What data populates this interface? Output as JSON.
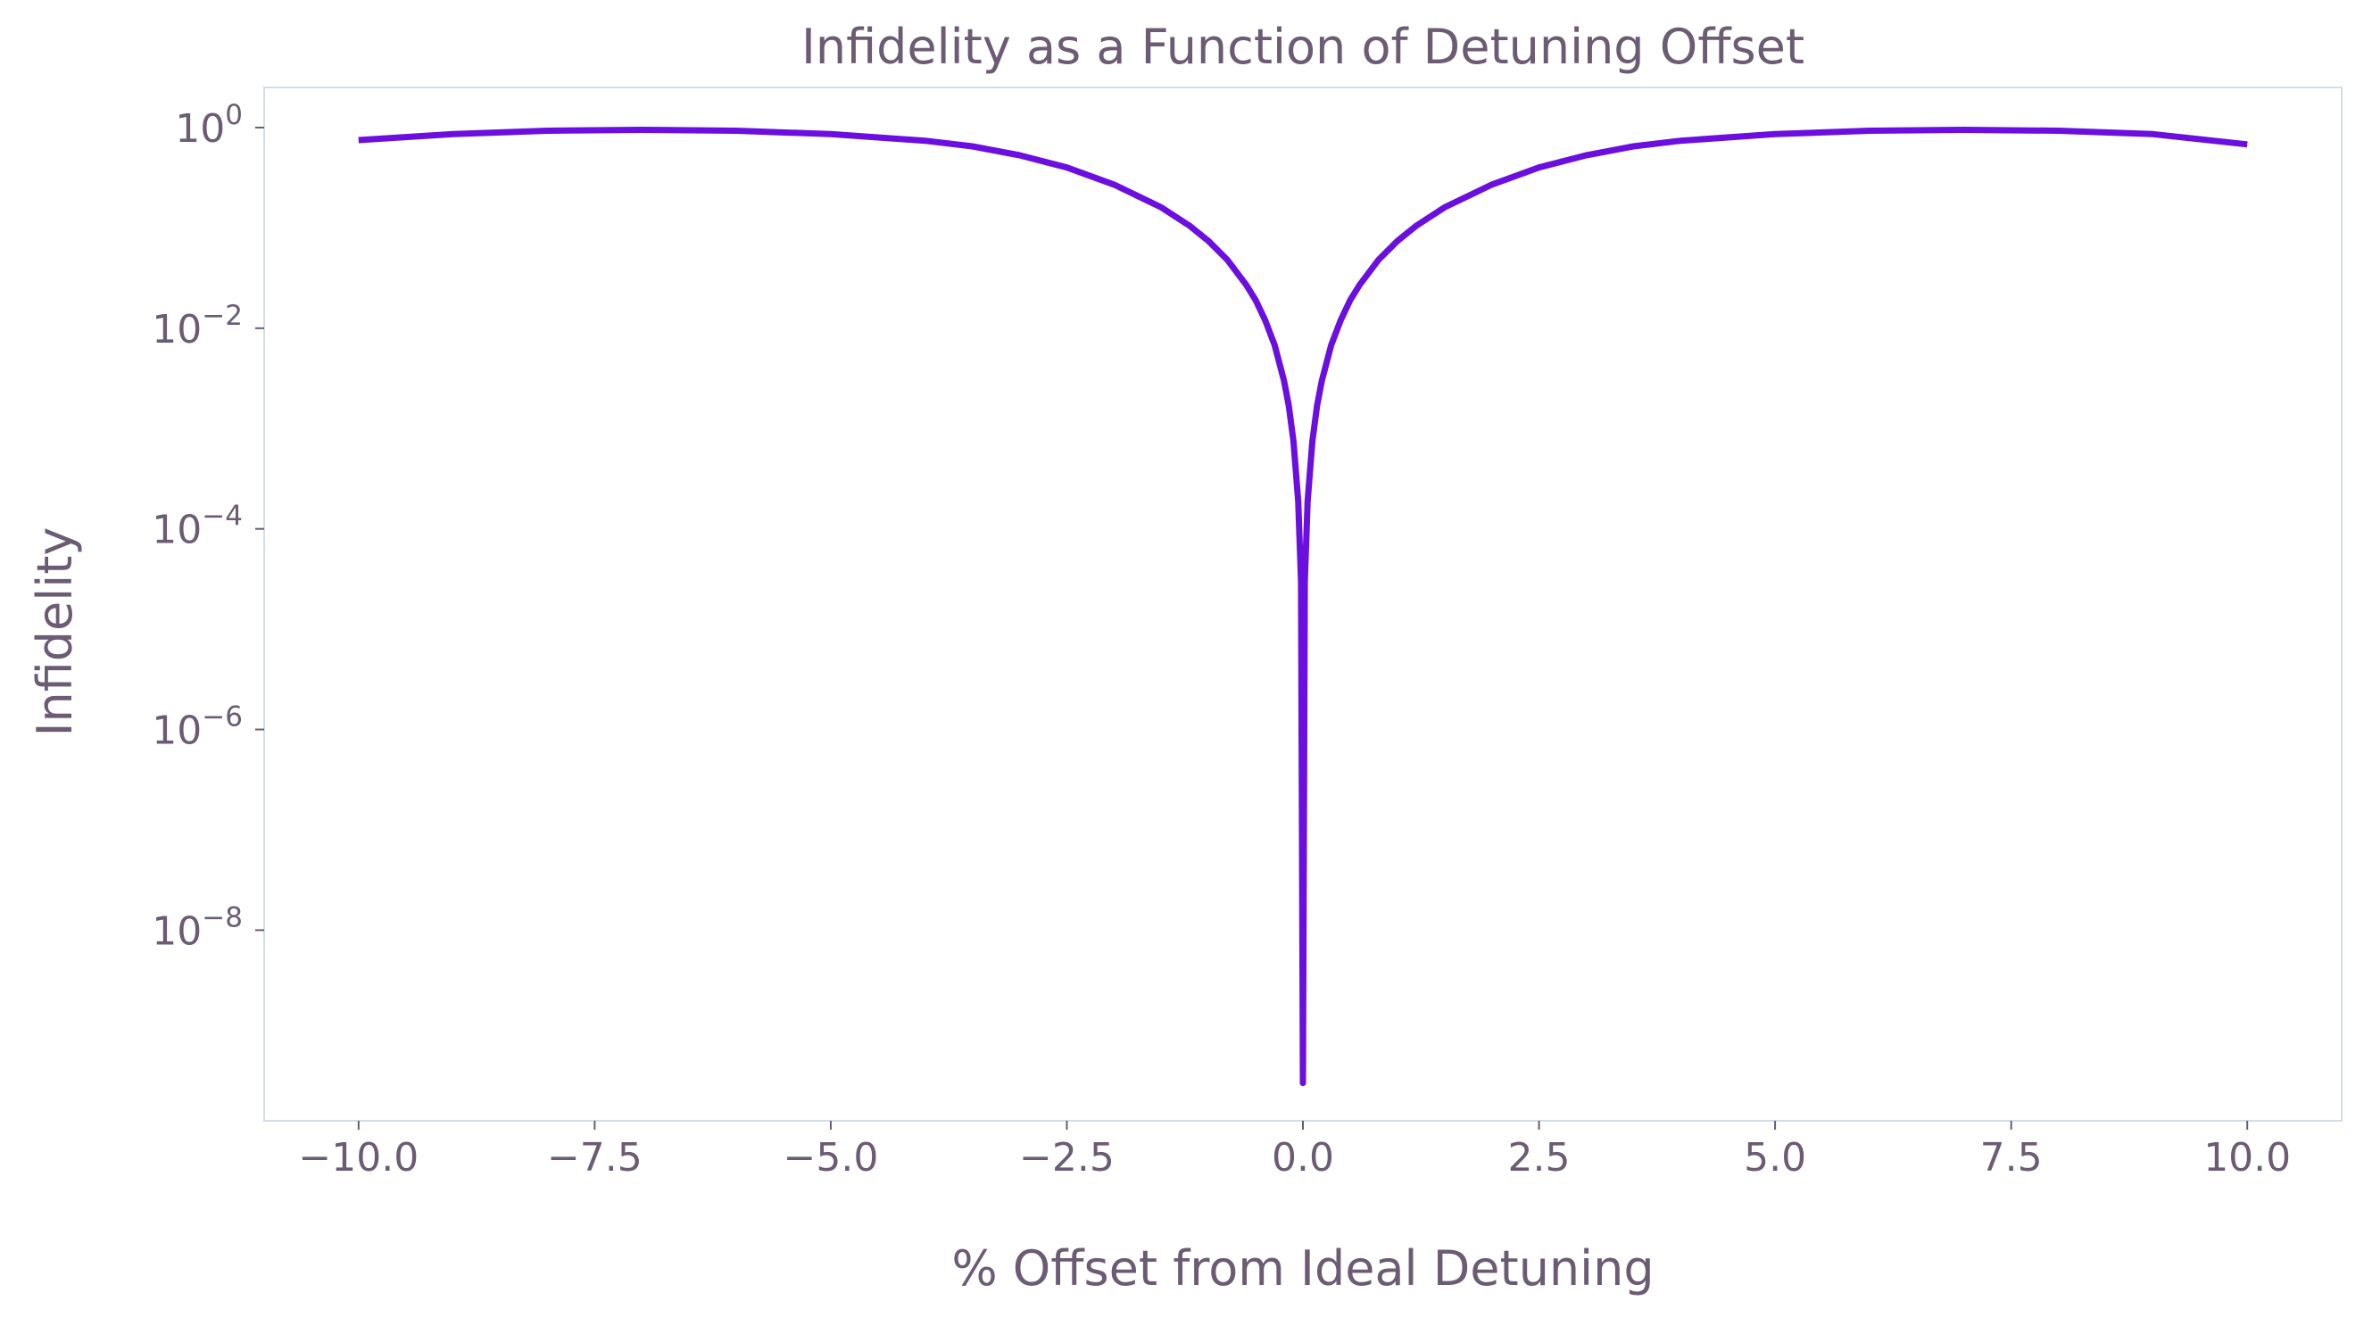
{
  "chart_data": {
    "type": "line",
    "title": "Infidelity as a Function of Detuning Offset",
    "xlabel": "% Offset from Ideal Detuning",
    "ylabel": "Infidelity",
    "x_scale": "linear",
    "y_scale": "log",
    "xlim": [
      -11.0,
      11.0
    ],
    "ylim_log10": [
      -9.9,
      0.4
    ],
    "grid": false,
    "legend": "none",
    "colors": {
      "line": "#6a0fe0",
      "text": "#6b5b73",
      "spine": "#d3dde8"
    },
    "x_ticks": [
      {
        "value": -10.0,
        "label": "−10.0"
      },
      {
        "value": -7.5,
        "label": "−7.5"
      },
      {
        "value": -5.0,
        "label": "−5.0"
      },
      {
        "value": -2.5,
        "label": "−2.5"
      },
      {
        "value": 0.0,
        "label": "0.0"
      },
      {
        "value": 2.5,
        "label": "2.5"
      },
      {
        "value": 5.0,
        "label": "5.0"
      },
      {
        "value": 7.5,
        "label": "7.5"
      },
      {
        "value": 10.0,
        "label": "10.0"
      }
    ],
    "y_ticks": [
      {
        "value": 1,
        "base": "10",
        "exp": "0"
      },
      {
        "value": 0.01,
        "base": "10",
        "exp": "−2"
      },
      {
        "value": 0.0001,
        "base": "10",
        "exp": "−4"
      },
      {
        "value": 1e-06,
        "base": "10",
        "exp": "−6"
      },
      {
        "value": 1e-08,
        "base": "10",
        "exp": "−8"
      }
    ],
    "series": [
      {
        "x": [
          -10,
          -9,
          -8,
          -7,
          -6,
          -5,
          -4,
          -3.5,
          -3,
          -2.5,
          -2,
          -1.5,
          -1.2,
          -1,
          -0.8,
          -0.6,
          -0.5,
          -0.4,
          -0.3,
          -0.2,
          -0.15,
          -0.1,
          -0.05,
          -0.02,
          0,
          0.02,
          0.05,
          0.1,
          0.15,
          0.2,
          0.3,
          0.4,
          0.5,
          0.6,
          0.8,
          1,
          1.2,
          1.5,
          2,
          2.5,
          3,
          3.5,
          4,
          5,
          6,
          7,
          8,
          9,
          10
        ],
        "y": [
          0.75,
          0.86,
          0.93,
          0.95,
          0.93,
          0.86,
          0.74,
          0.65,
          0.53,
          0.4,
          0.27,
          0.16,
          0.105,
          0.074,
          0.048,
          0.027,
          0.019,
          0.012,
          0.0068,
          0.003,
          0.0017,
          0.00075,
          0.00019,
          3e-05,
          3e-10,
          3e-05,
          0.00019,
          0.00075,
          0.0017,
          0.003,
          0.0068,
          0.012,
          0.019,
          0.027,
          0.048,
          0.074,
          0.105,
          0.16,
          0.27,
          0.4,
          0.53,
          0.65,
          0.74,
          0.86,
          0.93,
          0.95,
          0.93,
          0.86,
          0.68
        ]
      }
    ]
  }
}
